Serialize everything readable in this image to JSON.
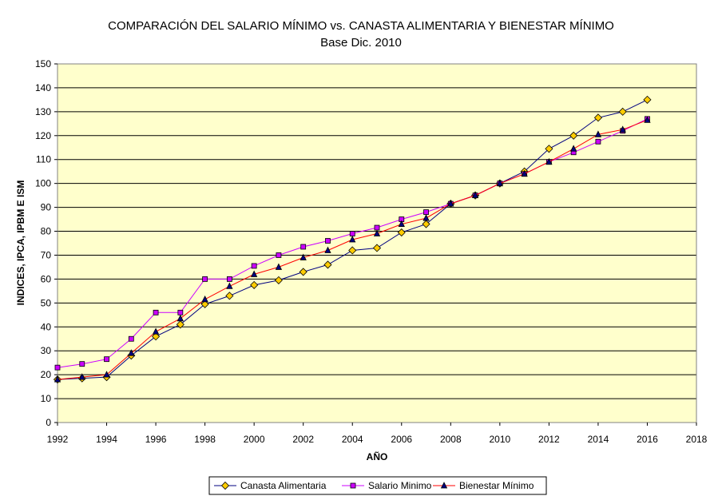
{
  "chart_data": {
    "type": "line",
    "title": "COMPARACIÓN DEL SALARIO MÍNIMO vs. CANASTA ALIMENTARIA Y BIENESTAR MÍNIMO",
    "subtitle": "Base  Dic. 2010",
    "xlabel": "AÑO",
    "ylabel": "INDICES, IPCA, IPBM E ISM",
    "xlim": [
      1992,
      2018
    ],
    "ylim": [
      0,
      150
    ],
    "x_ticks": [
      "1992",
      "1994",
      "1996",
      "1998",
      "2000",
      "2002",
      "2004",
      "2006",
      "2008",
      "2010",
      "2012",
      "2014",
      "2016",
      "2018"
    ],
    "y_ticks": [
      "0",
      "10",
      "20",
      "30",
      "40",
      "50",
      "60",
      "70",
      "80",
      "90",
      "100",
      "110",
      "120",
      "130",
      "140",
      "150"
    ],
    "grid": true,
    "plot_background": "#FFFFCC",
    "legend_position": "bottom",
    "series": [
      {
        "name": "Canasta Alimentaria",
        "color": "#000080",
        "marker": "diamond",
        "marker_color": "#FFCC00",
        "x": [
          1992,
          1993,
          1994,
          1995,
          1996,
          1997,
          1998,
          1999,
          2000,
          2001,
          2002,
          2003,
          2004,
          2005,
          2006,
          2007,
          2008,
          2009,
          2010,
          2011,
          2012,
          2013,
          2014,
          2015,
          2016
        ],
        "values": [
          18,
          18.5,
          19,
          28,
          36,
          41,
          49.5,
          53,
          57.5,
          59.5,
          63,
          66,
          72,
          73,
          79.5,
          83,
          91.5,
          95,
          100,
          105,
          114.5,
          120,
          127.5,
          130,
          135
        ]
      },
      {
        "name": "Salario Minimo",
        "color": "#CC00FF",
        "marker": "square",
        "marker_color": "#CC00FF",
        "x": [
          1992,
          1993,
          1994,
          1995,
          1996,
          1997,
          1998,
          1999,
          2000,
          2001,
          2002,
          2003,
          2004,
          2005,
          2006,
          2007,
          2008,
          2009,
          2010,
          2011,
          2012,
          2013,
          2014,
          2015,
          2016
        ],
        "values": [
          23,
          24.5,
          26.5,
          35,
          46,
          46,
          60,
          60,
          65.5,
          70,
          73.5,
          76,
          79,
          81.5,
          85,
          88,
          91.5,
          95,
          100,
          104,
          109,
          113,
          117.5,
          122,
          127
        ]
      },
      {
        "name": "Bienestar Mínimo",
        "color": "#FF0000",
        "marker": "triangle",
        "marker_color": "#000080",
        "x": [
          1992,
          1993,
          1994,
          1995,
          1996,
          1997,
          1998,
          1999,
          2000,
          2001,
          2002,
          2003,
          2004,
          2005,
          2006,
          2007,
          2008,
          2009,
          2010,
          2011,
          2012,
          2013,
          2014,
          2015,
          2016
        ],
        "values": [
          18,
          19,
          20,
          29,
          38,
          43.5,
          51.5,
          57,
          62,
          65,
          69,
          72,
          76.5,
          79,
          83,
          85.5,
          91.5,
          95,
          100,
          104,
          109,
          114.5,
          120.5,
          122.5,
          126.5
        ]
      }
    ]
  }
}
